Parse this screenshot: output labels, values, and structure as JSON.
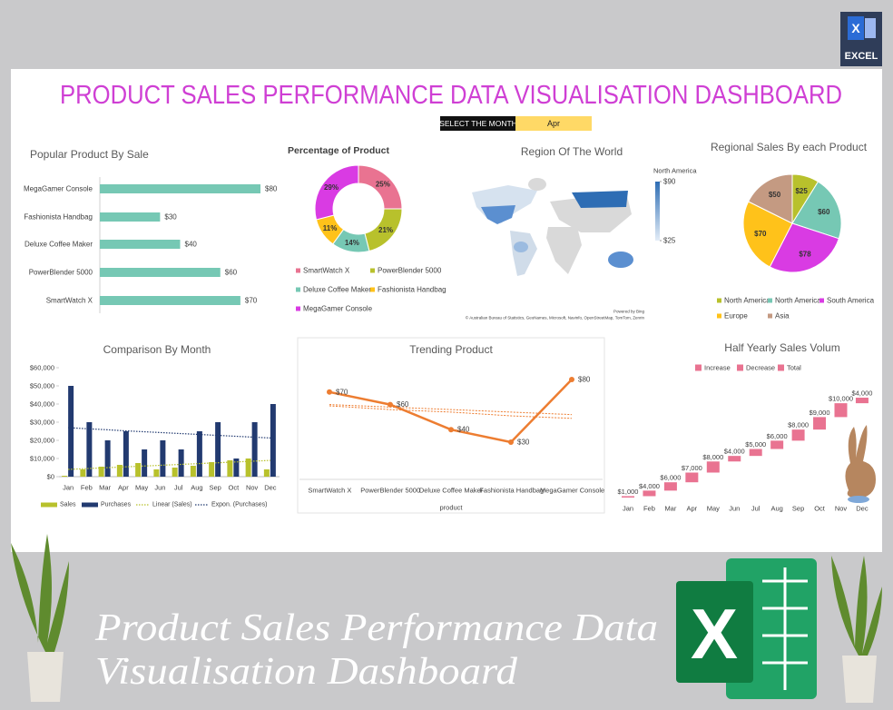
{
  "header": {
    "title": "PRODUCT SALES PERFORMANCE DATA VISUALISATION DASHBOARD",
    "select_label": "SELECT THE MONTH",
    "selected_month": "Apr"
  },
  "logo": {
    "letter": "X",
    "label": "EXCEL"
  },
  "footer": {
    "lines": [
      "Product Sales Performance Data",
      "Visualisation Dashboard"
    ],
    "logo_letter": "X"
  },
  "chart_data": [
    {
      "type": "hbar",
      "title": "Popular Product By Sale",
      "categories": [
        "MegaGamer Console",
        "Fashionista Handbag",
        "Deluxe Coffee Maker",
        "PowerBlender 5000",
        "SmartWatch X"
      ],
      "values": [
        80,
        30,
        40,
        60,
        70
      ],
      "value_labels": [
        "$80",
        "$30",
        "$40",
        "$60",
        "$70"
      ],
      "color": "#76c8b4"
    },
    {
      "type": "donut",
      "title": "Percentage of Product",
      "categories": [
        "SmartWatch X",
        "PowerBlender 5000",
        "Deluxe Coffee Maker",
        "Fashionista Handbag",
        "MegaGamer Console"
      ],
      "values": [
        25,
        21,
        14,
        11,
        29
      ],
      "value_labels": [
        "25%",
        "21%",
        "14%",
        "11%",
        "29%"
      ],
      "colors": [
        "#e97391",
        "#b8c12c",
        "#76c8b4",
        "#ffc21a",
        "#d93be3"
      ]
    },
    {
      "type": "map",
      "title": "Region Of The World",
      "legend_title": "North America",
      "colorbar": {
        "ticks": [
          {
            "value": 90,
            "label": "$90"
          },
          {
            "value": 25,
            "label": "$25"
          }
        ],
        "colors": [
          "#2e6db4",
          "#e3edf7"
        ]
      },
      "credits": [
        "Powered by Bing",
        "© Australian Bureau of Statistics, GeoNames, Microsoft, Navinfo, OpenStreetMap, TomTom, Zenrin"
      ]
    },
    {
      "type": "pie",
      "title": "Regional Sales By each Product",
      "categories": [
        "North America",
        "North America",
        "South America",
        "Europe",
        "Asia"
      ],
      "values": [
        25,
        60,
        78,
        70,
        50
      ],
      "value_labels": [
        "$25",
        "$60",
        "$78",
        "$70",
        "$50"
      ],
      "colors": [
        "#b8c12c",
        "#76c8b4",
        "#d93be3",
        "#ffc21a",
        "#c49a82"
      ]
    },
    {
      "type": "combo_bar",
      "title": "Comparison By Month",
      "categories": [
        "Jan",
        "Feb",
        "Mar",
        "Apr",
        "May",
        "Jun",
        "Jul",
        "Aug",
        "Sep",
        "Oct",
        "Nov",
        "Dec"
      ],
      "series": [
        {
          "name": "Sales",
          "color": "#b8c12c",
          "values": [
            500,
            4000,
            5500,
            6500,
            7500,
            4000,
            5000,
            6000,
            8000,
            9000,
            10000,
            4000
          ]
        },
        {
          "name": "Purchases",
          "color": "#223a70",
          "values": [
            50000,
            30000,
            20000,
            25000,
            15000,
            20000,
            15000,
            25000,
            30000,
            10000,
            30000,
            40000
          ]
        }
      ],
      "trendlines": [
        {
          "name": "Linear (Sales)",
          "color": "#b8c12c",
          "values": [
            4000,
            4450,
            4900,
            5350,
            5800,
            6250,
            6700,
            7150,
            7600,
            8050,
            8500,
            8950
          ]
        },
        {
          "name": "Expon. (Purchases)",
          "color": "#223a70",
          "values": [
            27000,
            26400,
            25900,
            25300,
            24800,
            24300,
            23800,
            23300,
            22800,
            22300,
            21800,
            21300
          ]
        }
      ],
      "ylim": [
        0,
        60000
      ],
      "yticks": [
        {
          "value": 0,
          "label": "$0"
        },
        {
          "value": 10000,
          "label": "$10,000"
        },
        {
          "value": 20000,
          "label": "$20,000"
        },
        {
          "value": 30000,
          "label": "$30,000"
        },
        {
          "value": 40000,
          "label": "$40,000"
        },
        {
          "value": 50000,
          "label": "$50,000"
        },
        {
          "value": 60000,
          "label": "$60,000"
        }
      ]
    },
    {
      "type": "line",
      "title": "Trending Product",
      "categories": [
        "SmartWatch X",
        "PowerBlender 5000",
        "Deluxe Coffee Maker",
        "Fashionista Handbag",
        "MegaGamer Console"
      ],
      "values": [
        70,
        60,
        40,
        30,
        80
      ],
      "value_labels": [
        "$70",
        "$60",
        "$40",
        "$30",
        "$80"
      ],
      "color": "#ed7d31",
      "x_label": "product",
      "trendlines": [
        {
          "color": "#ed7d31",
          "values": [
            60,
            58,
            56,
            54,
            52
          ]
        },
        {
          "color": "#ed7d31",
          "values": [
            59,
            56,
            54,
            51,
            49
          ]
        }
      ]
    },
    {
      "type": "waterfall",
      "title": "Half Yearly Sales Volum",
      "categories": [
        "Jan",
        "Feb",
        "Mar",
        "Apr",
        "May",
        "Jun",
        "Jul",
        "Aug",
        "Sep",
        "Oct",
        "Nov",
        "Dec"
      ],
      "values": [
        1000,
        4000,
        6000,
        7000,
        8000,
        4000,
        5000,
        6000,
        8000,
        9000,
        10000,
        4000
      ],
      "value_labels": [
        "$1,000",
        "$4,000",
        "$6,000",
        "$7,000",
        "$8,000",
        "$4,000",
        "$5,000",
        "$6,000",
        "$8,000",
        "$9,000",
        "$10,000",
        "$4,000"
      ],
      "legend": [
        "Increase",
        "Decrease",
        "Total"
      ],
      "color": "#e97391"
    }
  ]
}
